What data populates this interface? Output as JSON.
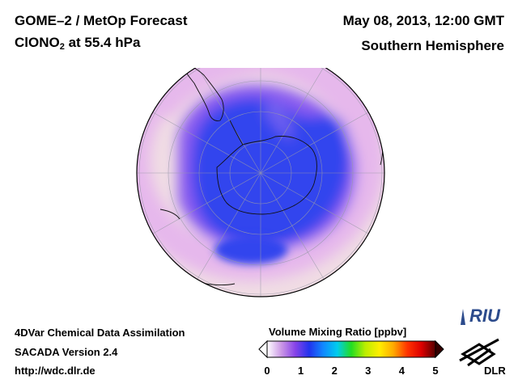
{
  "header": {
    "title_line1": "GOME–2 / MetOp Forecast",
    "species": "ClONO",
    "species_sub": "2",
    "level": " at 55.4 hPa",
    "date": "May 08, 2013, 12:00 GMT",
    "region": "Southern Hemisphere"
  },
  "footer": {
    "line1": "4DVar Chemical Data Assimilation",
    "line2": "SACADA Version 2.4",
    "line3": "http://wdc.dlr.de"
  },
  "colorbar": {
    "title": "Volume Mixing Ratio [ppbv]",
    "ticks": [
      "0",
      "1",
      "2",
      "3",
      "4",
      "5"
    ],
    "range": [
      0,
      5
    ],
    "stops": [
      "#ffffff",
      "#cc99e6",
      "#8844e8",
      "#2233ee",
      "#1188ff",
      "#00ccee",
      "#22dd22",
      "#bbee00",
      "#ffee00",
      "#ffaa00",
      "#ff3300",
      "#dd0000",
      "#550000"
    ]
  },
  "logos": {
    "riu": "RIU",
    "dlr": "DLR"
  },
  "map": {
    "projection": "orthographic, south pole view",
    "background_color": "#f0dce4",
    "low_color": "#3344ee",
    "band_color": "#e6b8ec"
  }
}
